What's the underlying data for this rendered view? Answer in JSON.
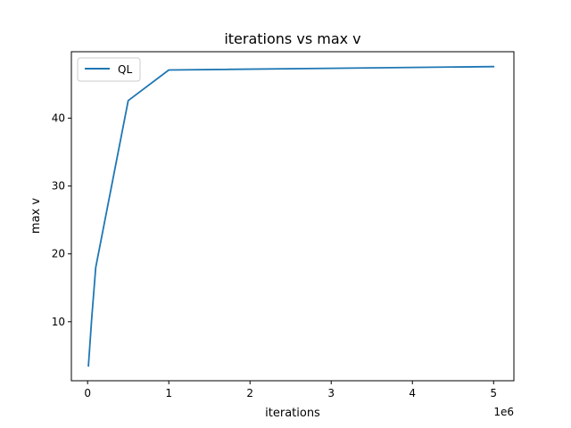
{
  "chart_data": {
    "type": "line",
    "title": "iterations vs max v",
    "xlabel": "iterations",
    "ylabel": "max v",
    "x_offset_text": "1e6",
    "xlim": [
      -200000,
      5250000
    ],
    "ylim": [
      1.3,
      49.8
    ],
    "x_ticks": [
      0,
      1000000,
      2000000,
      3000000,
      4000000,
      5000000
    ],
    "x_tick_labels": [
      "0",
      "1",
      "2",
      "3",
      "4",
      "5"
    ],
    "y_ticks": [
      10,
      20,
      30,
      40
    ],
    "y_tick_labels": [
      "10",
      "20",
      "30",
      "40"
    ],
    "grid": false,
    "legend_position": "upper-left",
    "series": [
      {
        "name": "QL",
        "color": "#1f77b4",
        "x": [
          10000,
          50000,
          100000,
          500000,
          1000000,
          5000000
        ],
        "y": [
          3.5,
          10.5,
          18.0,
          42.6,
          47.1,
          47.6
        ]
      }
    ]
  }
}
